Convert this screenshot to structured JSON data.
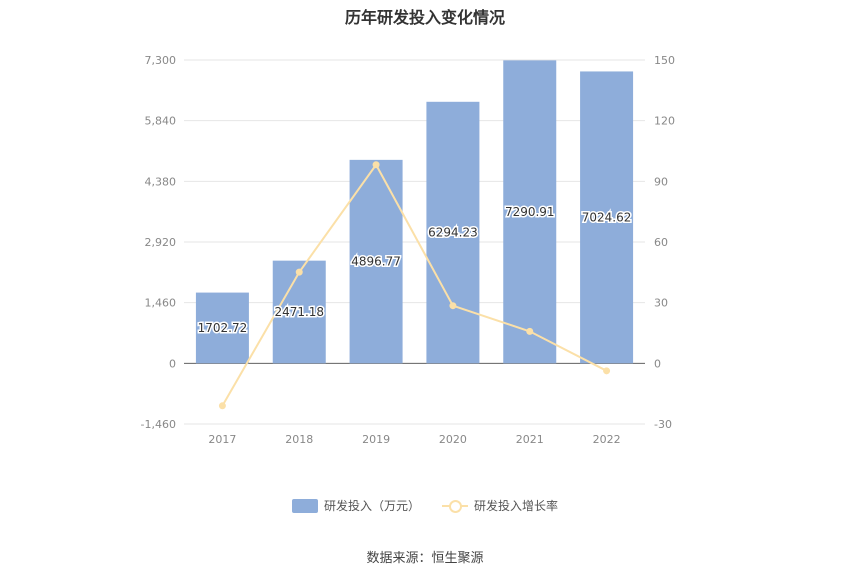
{
  "chart_data": {
    "type": "bar",
    "title": "历年研发投入变化情况",
    "categories": [
      "2017",
      "2018",
      "2019",
      "2020",
      "2021",
      "2022"
    ],
    "series": [
      {
        "name": "研发投入（万元）",
        "type": "bar",
        "axis": "left",
        "values": [
          1702.72,
          2471.18,
          4896.77,
          6294.23,
          7290.91,
          7024.62
        ],
        "labels": [
          "1702.72",
          "2471.18",
          "4896.77",
          "6294.23",
          "7290.91",
          "7024.62"
        ]
      },
      {
        "name": "研发投入增长率",
        "type": "line",
        "axis": "right",
        "values": [
          -21.0,
          45.1,
          98.2,
          28.5,
          15.8,
          -3.7
        ]
      }
    ],
    "left_axis": {
      "ylim": [
        -1460,
        7300
      ],
      "ticks": [
        "-1,460",
        "0",
        "1,460",
        "2,920",
        "4,380",
        "5,840",
        "7,300"
      ]
    },
    "right_axis": {
      "ylim": [
        -30,
        150
      ],
      "ticks": [
        "-30",
        "0",
        "30",
        "60",
        "90",
        "120",
        "150"
      ]
    },
    "legend_position": "bottom",
    "grid": true,
    "colors": {
      "bar": "#8eadda",
      "line": "#fbe0a8"
    }
  },
  "source": "数据来源：恒生聚源"
}
